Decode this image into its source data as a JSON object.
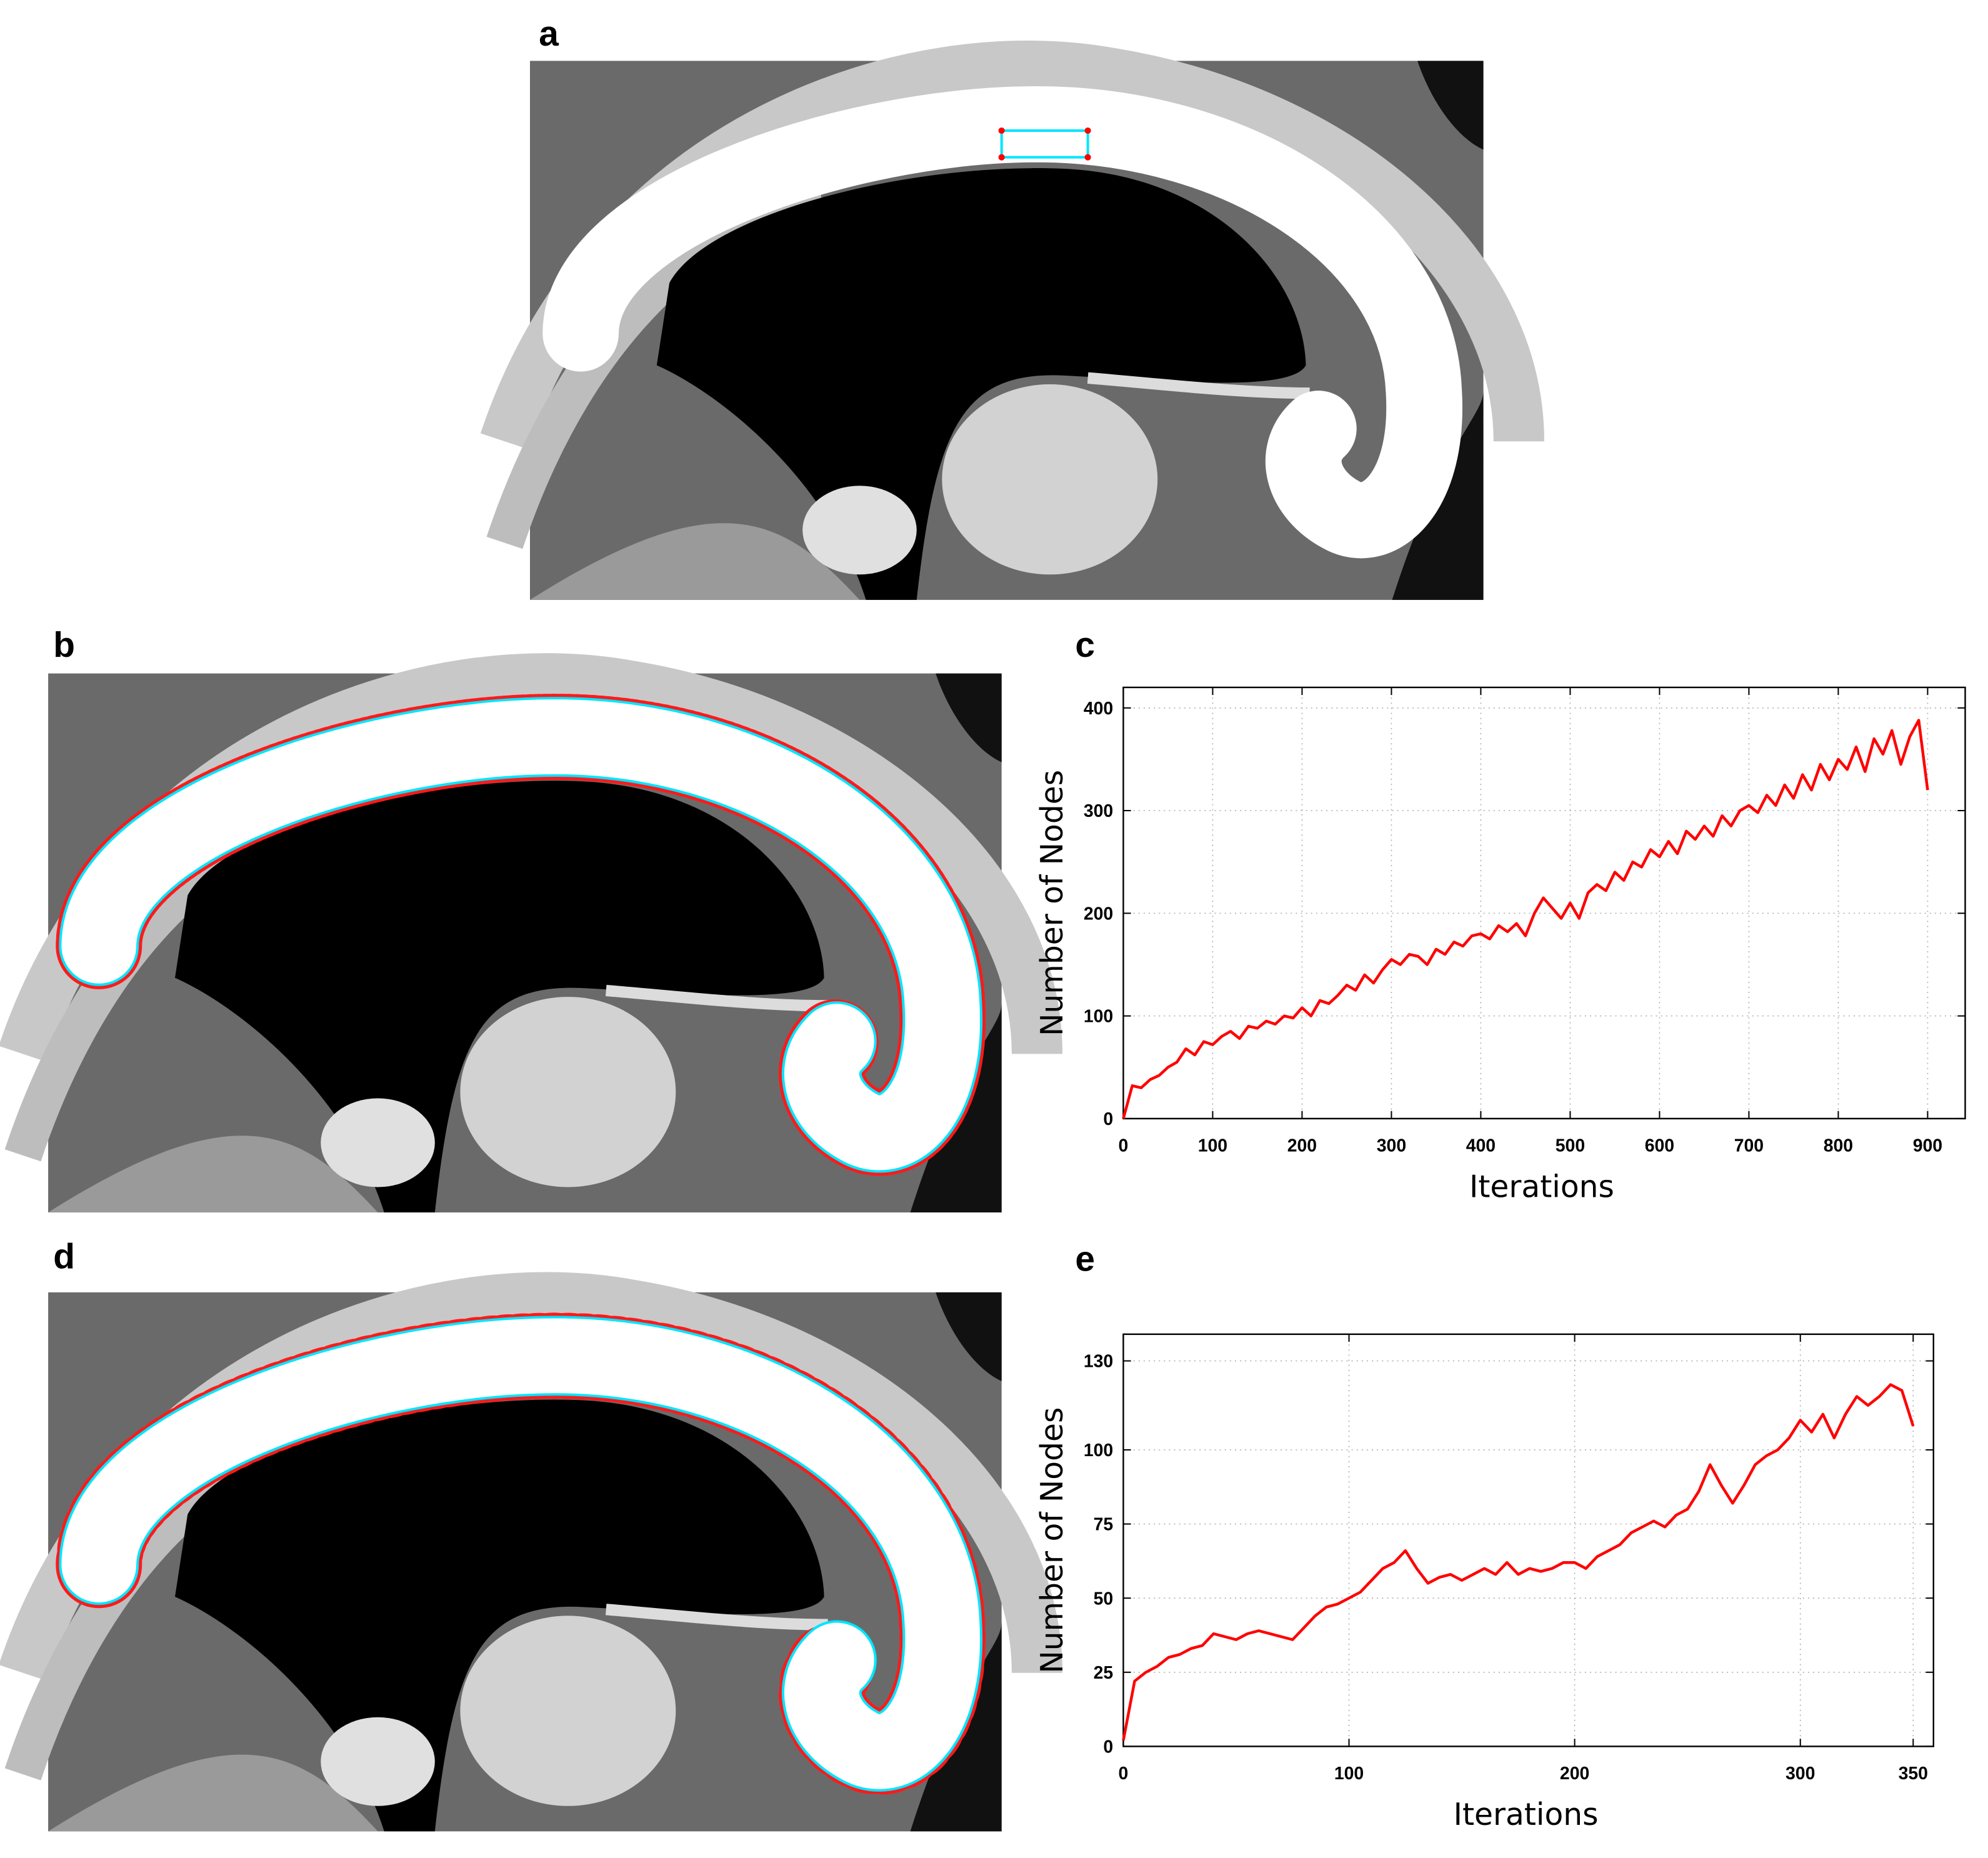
{
  "panel_labels": [
    "a",
    "b",
    "c",
    "d",
    "e"
  ],
  "chart_data": [
    {
      "type": "line",
      "x_label": "Iterations",
      "y_label": "Number of Nodes",
      "color": "#ff0000",
      "grid": true,
      "xlim": [
        0,
        942
      ],
      "ylim": [
        0,
        420
      ],
      "xticks": [
        0,
        100,
        200,
        300,
        400,
        500,
        600,
        700,
        800,
        900
      ],
      "yticks": [
        0,
        100,
        200,
        300,
        400
      ],
      "x": [
        0,
        10,
        20,
        30,
        40,
        50,
        60,
        70,
        80,
        90,
        100,
        110,
        120,
        130,
        140,
        150,
        160,
        170,
        180,
        190,
        200,
        210,
        220,
        230,
        240,
        250,
        260,
        270,
        280,
        290,
        300,
        310,
        320,
        330,
        340,
        350,
        360,
        370,
        380,
        390,
        400,
        410,
        420,
        430,
        440,
        450,
        460,
        470,
        480,
        490,
        500,
        510,
        520,
        530,
        540,
        550,
        560,
        570,
        580,
        590,
        600,
        610,
        620,
        630,
        640,
        650,
        660,
        670,
        680,
        690,
        700,
        710,
        720,
        730,
        740,
        750,
        760,
        770,
        780,
        790,
        800,
        810,
        820,
        830,
        840,
        850,
        860,
        870,
        880,
        890,
        900
      ],
      "values": [
        0,
        32,
        30,
        38,
        42,
        50,
        55,
        68,
        62,
        75,
        72,
        80,
        85,
        78,
        90,
        88,
        95,
        92,
        100,
        98,
        108,
        100,
        115,
        112,
        120,
        130,
        125,
        140,
        132,
        145,
        155,
        150,
        160,
        158,
        150,
        165,
        160,
        172,
        168,
        178,
        180,
        175,
        188,
        182,
        190,
        178,
        200,
        215,
        205,
        195,
        210,
        195,
        220,
        228,
        222,
        240,
        232,
        250,
        245,
        262,
        255,
        270,
        258,
        280,
        272,
        285,
        275,
        295,
        285,
        300,
        305,
        298,
        315,
        305,
        325,
        312,
        335,
        320,
        345,
        330,
        350,
        340,
        362,
        338,
        370,
        355,
        378,
        345,
        372,
        388,
        320
      ]
    },
    {
      "type": "line",
      "x_label": "Iterations",
      "y_label": "Number of Nodes",
      "color": "#ff0000",
      "grid": true,
      "xlim": [
        0,
        359
      ],
      "ylim": [
        0,
        139
      ],
      "xticks": [
        0,
        100,
        200,
        300,
        350
      ],
      "yticks": [
        0,
        25,
        50,
        75,
        100,
        130
      ],
      "x": [
        0,
        5,
        10,
        15,
        20,
        25,
        30,
        35,
        40,
        45,
        50,
        55,
        60,
        65,
        70,
        75,
        80,
        85,
        90,
        95,
        100,
        105,
        110,
        115,
        120,
        125,
        130,
        135,
        140,
        145,
        150,
        155,
        160,
        165,
        170,
        175,
        180,
        185,
        190,
        195,
        200,
        205,
        210,
        215,
        220,
        225,
        230,
        235,
        240,
        245,
        250,
        255,
        260,
        265,
        270,
        275,
        280,
        285,
        290,
        295,
        300,
        305,
        310,
        315,
        320,
        325,
        330,
        335,
        340,
        345,
        350
      ],
      "values": [
        2,
        22,
        25,
        27,
        30,
        31,
        33,
        34,
        38,
        37,
        36,
        38,
        39,
        38,
        37,
        36,
        40,
        44,
        47,
        48,
        50,
        52,
        56,
        60,
        62,
        66,
        60,
        55,
        57,
        58,
        56,
        58,
        60,
        58,
        62,
        58,
        60,
        59,
        60,
        62,
        62,
        60,
        64,
        66,
        68,
        72,
        74,
        76,
        74,
        78,
        80,
        86,
        95,
        88,
        82,
        88,
        95,
        98,
        100,
        104,
        110,
        106,
        112,
        104,
        112,
        118,
        115,
        118,
        122,
        120,
        108
      ]
    }
  ]
}
